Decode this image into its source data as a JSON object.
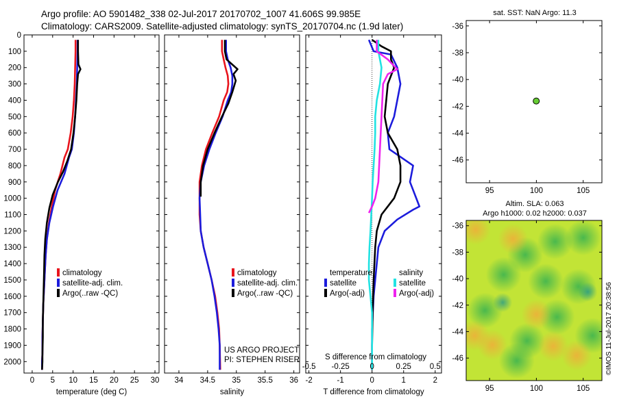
{
  "header": {
    "line1": "Argo profile: AO 5901482_338 02-Jul-2017 20170702_1007 41.606S 99.985E",
    "line2": "Climatology: CARS2009. Satellite-adjusted climatology: synTS_20170704.nc (1.9d later)"
  },
  "credit": "©IMOS 11-Jul-2017 20:38:56",
  "colors": {
    "climatology": "#e8141c",
    "satellite": "#1c1cdc",
    "argo": "#000000",
    "sat_salinity": "#22e2e2",
    "argo_salinity": "#ee22ee",
    "dot_fill": "#66cc33"
  },
  "chart_data": [
    {
      "id": "temperature",
      "type": "line",
      "xlabel": "temperature (deg C)",
      "xlim": [
        -2,
        31
      ],
      "xticks": [
        0,
        5,
        10,
        15,
        20,
        25,
        30
      ],
      "ylim": [
        2070,
        0
      ],
      "yticks": [
        0,
        100,
        200,
        300,
        400,
        500,
        600,
        700,
        800,
        900,
        1000,
        1100,
        1200,
        1300,
        1400,
        1500,
        1600,
        1700,
        1800,
        1900,
        2000
      ],
      "legend": [
        "climatology",
        "satellite-adj. clim.",
        "Argo(..raw -QC)"
      ],
      "series": [
        {
          "name": "climatology",
          "color_key": "climatology",
          "x": [
            10.6,
            10.6,
            10.5,
            10.4,
            10.2,
            9.9,
            9.4,
            8.7,
            7.9,
            6.9,
            5.6,
            4.8,
            4.1,
            3.6,
            3.3,
            3.1,
            2.9,
            2.7,
            2.6,
            2.5,
            2.5,
            2.4,
            2.4
          ],
          "y": [
            30,
            100,
            200,
            300,
            400,
            500,
            600,
            700,
            750,
            850,
            950,
            1050,
            1150,
            1250,
            1350,
            1450,
            1550,
            1650,
            1750,
            1850,
            1950,
            2000,
            2050
          ]
        },
        {
          "name": "satellite-adj. clim.",
          "color_key": "satellite",
          "x": [
            11.1,
            11.1,
            11.0,
            10.9,
            10.7,
            10.5,
            10.2,
            9.7,
            9.0,
            7.9,
            6.2,
            5.1,
            4.2,
            3.6,
            3.3,
            3.1,
            2.9,
            2.7,
            2.6,
            2.5,
            2.5,
            2.4,
            2.4
          ],
          "y": [
            30,
            100,
            200,
            300,
            400,
            500,
            600,
            700,
            750,
            850,
            950,
            1050,
            1150,
            1250,
            1350,
            1450,
            1550,
            1650,
            1750,
            1850,
            1950,
            2000,
            2050
          ]
        },
        {
          "name": "Argo(..raw -QC)",
          "color_key": "argo",
          "x": [
            11.2,
            11.2,
            11.3,
            11.8,
            11.2,
            11.0,
            10.8,
            10.5,
            10.1,
            9.5,
            8.6,
            7.5,
            6.3,
            5.0,
            4.2,
            3.6,
            3.2,
            3.0,
            2.9,
            2.8,
            2.7,
            2.6,
            2.6,
            2.5,
            2.5,
            2.4
          ],
          "y": [
            30,
            100,
            180,
            210,
            240,
            300,
            400,
            500,
            600,
            700,
            770,
            840,
            900,
            980,
            1060,
            1150,
            1250,
            1350,
            1450,
            1550,
            1650,
            1750,
            1850,
            1950,
            2000,
            2050
          ]
        }
      ]
    },
    {
      "id": "salinity",
      "type": "line",
      "xlabel": "salinity",
      "xlim": [
        33.75,
        36.1
      ],
      "xticks": [
        34,
        34.5,
        35,
        35.5,
        36
      ],
      "ylim": [
        2070,
        0
      ],
      "legend": [
        "climatology",
        "satellite-adj. clim.",
        "Argo(..raw -QC)"
      ],
      "annotation": [
        "US ARGO PROJECT",
        "PI: STEPHEN RISER"
      ],
      "series": [
        {
          "name": "climatology",
          "color_key": "climatology",
          "x": [
            34.75,
            34.75,
            34.78,
            34.81,
            34.85,
            34.86,
            34.84,
            34.78,
            34.7,
            34.58,
            34.47,
            34.4,
            34.36,
            34.36,
            34.36,
            34.38,
            34.43,
            34.5,
            34.57,
            34.63,
            34.67,
            34.7,
            34.71,
            34.72
          ],
          "y": [
            30,
            100,
            150,
            200,
            250,
            300,
            350,
            400,
            500,
            600,
            700,
            800,
            900,
            1000,
            1100,
            1200,
            1300,
            1400,
            1500,
            1600,
            1700,
            1800,
            1900,
            2050
          ]
        },
        {
          "name": "satellite-adj. clim.",
          "color_key": "satellite",
          "x": [
            34.82,
            34.82,
            34.85,
            34.9,
            34.93,
            34.93,
            34.91,
            34.85,
            34.76,
            34.64,
            34.53,
            34.44,
            34.38,
            34.36,
            34.37,
            34.38,
            34.43,
            34.5,
            34.57,
            34.62,
            34.66,
            34.69,
            34.71,
            34.71
          ],
          "y": [
            30,
            100,
            150,
            200,
            250,
            300,
            350,
            400,
            500,
            600,
            700,
            800,
            900,
            1000,
            1100,
            1200,
            1300,
            1400,
            1500,
            1600,
            1700,
            1800,
            1900,
            2050
          ]
        },
        {
          "name": "Argo(..raw -QC)",
          "color_key": "argo",
          "x": [
            34.8,
            34.8,
            34.83,
            35.02,
            34.95,
            34.99,
            34.93,
            34.86,
            34.75,
            34.62,
            34.5,
            34.42,
            34.38,
            34.38
          ],
          "y": [
            30,
            100,
            150,
            210,
            240,
            280,
            350,
            420,
            500,
            600,
            700,
            800,
            900,
            990
          ]
        }
      ]
    },
    {
      "id": "difference",
      "type": "line",
      "xlabel": "T difference from climatology",
      "top_label": "S difference from climatology",
      "xlim": [
        -2.1,
        2.2
      ],
      "xticks": [
        -2,
        -1,
        0,
        1,
        2
      ],
      "xticklabels_top": [
        "-0.5",
        "-0.25",
        "0",
        "0.25",
        "0.5"
      ],
      "legend_temperature_title": "temperature",
      "legend_salinity_title": "salinity",
      "legend": [
        "satellite",
        "Argo(-adj)"
      ],
      "series": [
        {
          "name": "temperature satellite",
          "color_key": "satellite",
          "x": [
            -0.1,
            0.05,
            0.6,
            0.8,
            0.9,
            0.7,
            0.5,
            0.55,
            1.3,
            1.2,
            1.3,
            1.4,
            1.5,
            1.3,
            0.8,
            0.4,
            0.2,
            0.1,
            0.05,
            0.0,
            0.0,
            0.0
          ],
          "y": [
            30,
            100,
            120,
            200,
            300,
            500,
            600,
            700,
            800,
            900,
            950,
            1000,
            1050,
            1070,
            1130,
            1200,
            1300,
            1500,
            1600,
            1800,
            1900,
            2050
          ]
        },
        {
          "name": "temperature Argo(-adj)",
          "color_key": "argo",
          "x": [
            0.0,
            0.3,
            0.6,
            0.6,
            0.7,
            0.5,
            0.4,
            0.5,
            0.8,
            0.9,
            0.9,
            0.8,
            0.7,
            0.5,
            0.3,
            0.15,
            0.1,
            0.05,
            0.02,
            0.0,
            0.0
          ],
          "y": [
            30,
            70,
            100,
            150,
            200,
            300,
            500,
            600,
            700,
            800,
            900,
            950,
            1000,
            1050,
            1100,
            1200,
            1300,
            1500,
            1700,
            1900,
            2050
          ]
        },
        {
          "name": "salinity satellite",
          "color_key": "sat_salinity",
          "x": [
            0.2,
            0.2,
            0.25,
            0.3,
            0.25,
            0.15,
            0.1,
            0.1,
            0.08,
            0.05,
            0.02,
            0.0,
            -0.05,
            -0.08,
            -0.1,
            -0.1,
            -0.05,
            0.0,
            0.0,
            0.0
          ],
          "y": [
            30,
            100,
            150,
            200,
            300,
            400,
            500,
            600,
            700,
            800,
            900,
            1000,
            1200,
            1300,
            1400,
            1500,
            1600,
            1700,
            1800,
            2050
          ]
        },
        {
          "name": "salinity Argo(-adj)",
          "color_key": "argo_salinity",
          "x": [
            0.15,
            0.15,
            0.5,
            0.8,
            0.5,
            0.35,
            0.3,
            0.25,
            0.2,
            0.1,
            0.0,
            -0.1
          ],
          "y": [
            30,
            100,
            150,
            210,
            240,
            300,
            500,
            700,
            900,
            1000,
            1050,
            1090
          ]
        }
      ]
    },
    {
      "id": "location",
      "type": "scatter",
      "title": "sat. SST: NaN Argo: 11.3",
      "xlim": [
        92.5,
        107
      ],
      "ylim": [
        -47.7,
        -35.6
      ],
      "xticks": [
        95,
        100,
        105
      ],
      "yticks": [
        -36,
        -38,
        -40,
        -42,
        -44,
        -46
      ],
      "points": [
        {
          "x": 99.985,
          "y": -41.606
        }
      ]
    },
    {
      "id": "sla",
      "type": "heatmap",
      "title_line1": "Altim. SLA: 0.063",
      "title_line2": "Argo h1000: 0.02 h2000: 0.037",
      "xlim": [
        92.5,
        107
      ],
      "ylim": [
        -47.7,
        -35.6
      ],
      "xticks": [
        95,
        100,
        105
      ],
      "yticks": [
        -36,
        -38,
        -40,
        -42,
        -44,
        -46
      ],
      "blobs": [
        {
          "x": 93.5,
          "y": -36.3,
          "value": "high"
        },
        {
          "x": 96.5,
          "y": -39.7,
          "value": "low"
        },
        {
          "x": 98.8,
          "y": -38.2,
          "value": "low"
        },
        {
          "x": 102,
          "y": -37.2,
          "value": "low"
        },
        {
          "x": 105,
          "y": -36.9,
          "value": "low"
        },
        {
          "x": 104.5,
          "y": -40.6,
          "value": "low"
        },
        {
          "x": 105.5,
          "y": -41.0,
          "value": "lowest"
        },
        {
          "x": 101,
          "y": -40.2,
          "value": "low"
        },
        {
          "x": 94.5,
          "y": -42.4,
          "value": "low"
        },
        {
          "x": 96.4,
          "y": -41.8,
          "value": "lowest"
        },
        {
          "x": 99,
          "y": -44.7,
          "value": "low"
        },
        {
          "x": 102.2,
          "y": -42.9,
          "value": "low"
        },
        {
          "x": 106,
          "y": -44.3,
          "value": "low"
        },
        {
          "x": 95.3,
          "y": -45.0,
          "value": "high"
        },
        {
          "x": 104.3,
          "y": -45.8,
          "value": "high"
        },
        {
          "x": 101.8,
          "y": -45.1,
          "value": "high"
        },
        {
          "x": 97.9,
          "y": -46.2,
          "value": "low"
        },
        {
          "x": 93.4,
          "y": -44.3,
          "value": "high"
        },
        {
          "x": 100,
          "y": -42.7,
          "value": "high"
        },
        {
          "x": 97.5,
          "y": -37.0,
          "value": "high"
        }
      ]
    }
  ]
}
